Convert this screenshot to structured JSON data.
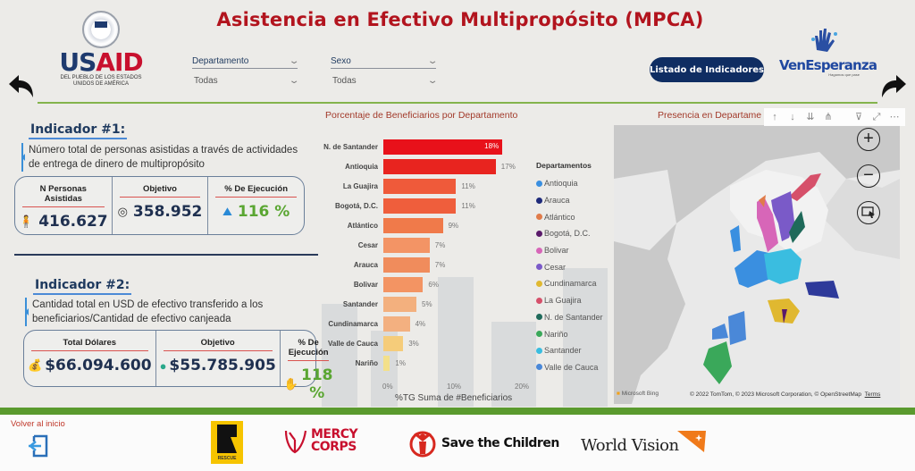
{
  "header": {
    "title": "Asistencia en Efectivo Multipropósito (MPCA)",
    "usaid": {
      "word_us": "US",
      "word_aid": "AID",
      "subtitle_line1": "DEL PUEBLO DE LOS ESTADOS",
      "subtitle_line2": "UNIDOS DE AMÉRICA"
    },
    "slicers": [
      {
        "label": "Departamento",
        "value": "Todas"
      },
      {
        "label": "Sexo",
        "value": "Todas"
      }
    ],
    "list_button": "Listado de Indicadores",
    "venesperanza": {
      "name": "VenEsperanza",
      "tagline": "Hagamos que pase"
    },
    "chevron": "⌄"
  },
  "indicators": [
    {
      "title": "Indicador #1:",
      "description": "Número total de personas asistidas a través de actividades de entrega de dinero de multipropósito",
      "kpis": [
        {
          "label": "N Personas Asistidas",
          "value": "416.627",
          "icon": "people-icon"
        },
        {
          "label": "Objetivo",
          "value": "358.952",
          "icon": "target-icon"
        },
        {
          "label": "% De Ejecución",
          "value": "116 %",
          "icon": "climber-icon"
        }
      ]
    },
    {
      "title": "Indicador #2:",
      "description": "Cantidad total en USD de efectivo transferido a los beneficiarios/Cantidad de efectivo canjeada",
      "kpis": [
        {
          "label": "Total Dólares",
          "value": "$66.094.600",
          "icon": "money-bag-icon"
        },
        {
          "label": "Objetivo",
          "value": "$55.785.905",
          "icon": "coin-icon"
        },
        {
          "label": "% De Ejecución",
          "value": "118 %",
          "icon": "hand-money-icon"
        }
      ]
    }
  ],
  "chart_data": {
    "type": "bar",
    "orientation": "horizontal",
    "title": "Porcentaje de Beneficiarios por Departamento",
    "categories": [
      "N. de Santander",
      "Antioquia",
      "La Guajira",
      "Bogotá, D.C.",
      "Atlántico",
      "Cesar",
      "Arauca",
      "Bolivar",
      "Santander",
      "Cundinamarca",
      "Valle de Cauca",
      "Nariño"
    ],
    "values": [
      18,
      17,
      11,
      11,
      9,
      7,
      7,
      6,
      5,
      4,
      3,
      1
    ],
    "labels": [
      "18%",
      "17%",
      "11%",
      "11%",
      "9%",
      "7%",
      "7%",
      "6%",
      "5%",
      "4%",
      "3%",
      "1%"
    ],
    "colors": [
      "#e8111a",
      "#e8241f",
      "#ef5a3a",
      "#ef5e3c",
      "#f07a4a",
      "#f39465",
      "#f08c5c",
      "#f39463",
      "#f3b07e",
      "#f3b080",
      "#f5cc7a",
      "#f3e08a"
    ],
    "xlabel": "%TG Suma de #Beneficiarios",
    "ylabel": "",
    "xticks": [
      "0%",
      "10%",
      "20%"
    ],
    "xlim": [
      0,
      20
    ],
    "grid": false
  },
  "map": {
    "title": "Presencia en Departame",
    "legend_title": "Departamentos",
    "legend": [
      {
        "name": "Antioquia",
        "color": "#3a8fe0"
      },
      {
        "name": "Arauca",
        "color": "#1e2a7a"
      },
      {
        "name": "Atlántico",
        "color": "#e07b4a"
      },
      {
        "name": "Bogotá, D.C.",
        "color": "#5a1a6a"
      },
      {
        "name": "Bolivar",
        "color": "#d766b8"
      },
      {
        "name": "Cesar",
        "color": "#7a5ac8"
      },
      {
        "name": "Cundinamarca",
        "color": "#e0b830"
      },
      {
        "name": "La Guajira",
        "color": "#d6506a"
      },
      {
        "name": "N. de Santander",
        "color": "#1f6a5a"
      },
      {
        "name": "Nariño",
        "color": "#3aa85a"
      },
      {
        "name": "Santander",
        "color": "#3abde0"
      },
      {
        "name": "Valle de Cauca",
        "color": "#4a88d8"
      }
    ],
    "toolbar": [
      "↑",
      "↓",
      "⇊",
      "⋔",
      "⊽",
      "⤢",
      "⋯"
    ],
    "controls": {
      "zoom_in": "+",
      "zoom_out": "−"
    },
    "attribution": "© 2022 TomTom, © 2023 Microsoft Corporation, © OpenStreetMap",
    "terms": "Terms",
    "bing": "Microsoft Bing"
  },
  "footer": {
    "back_to_start": "Volver al inicio",
    "partners": {
      "irc": "RESCUE",
      "mercy_line1": "MERCY",
      "mercy_line2": "CORPS",
      "stc": "Save the Children",
      "wv": "World Vision"
    }
  }
}
